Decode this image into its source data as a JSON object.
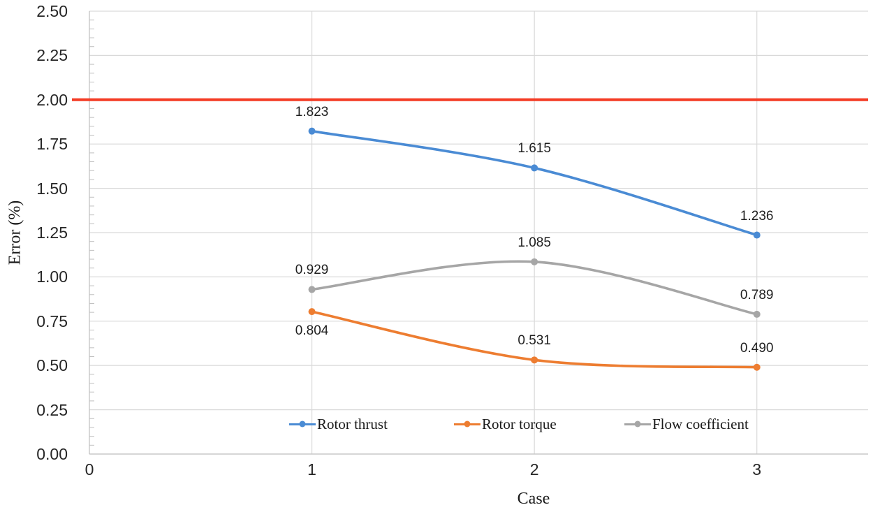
{
  "chart_data": {
    "type": "line",
    "title": "",
    "xlabel": "Case",
    "ylabel": "Error (%)",
    "x": [
      1,
      2,
      3
    ],
    "x_tick_values": [
      0,
      1,
      2,
      3
    ],
    "x_tick_labels": [
      "0",
      "1",
      "2",
      "3"
    ],
    "xlim": [
      0,
      3.5
    ],
    "ylim": [
      0,
      2.5
    ],
    "y_tick_step": 0.25,
    "y_minor_tick_step": 0.05,
    "y_tick_labels": [
      "0.00",
      "0.25",
      "0.50",
      "0.75",
      "1.00",
      "1.25",
      "1.50",
      "1.75",
      "2.00",
      "2.25",
      "2.50"
    ],
    "grid": true,
    "legend_position": "inside-bottom",
    "series": [
      {
        "name": "Rotor thrust",
        "color": "#4a8bd4",
        "values": [
          1.823,
          1.615,
          1.236
        ],
        "point_labels": [
          "1.823",
          "1.615",
          "1.236"
        ],
        "label_positions": [
          "above",
          "above",
          "above"
        ],
        "smooth": true
      },
      {
        "name": "Rotor torque",
        "color": "#ed7d31",
        "values": [
          0.804,
          0.531,
          0.49
        ],
        "point_labels": [
          "0.804",
          "0.531",
          "0.490"
        ],
        "label_positions": [
          "below",
          "above",
          "above"
        ],
        "smooth": true
      },
      {
        "name": "Flow coefficient",
        "color": "#a6a6a6",
        "values": [
          0.929,
          1.085,
          0.789
        ],
        "point_labels": [
          "0.929",
          "1.085",
          "0.789"
        ],
        "label_positions": [
          "above",
          "above",
          "above"
        ],
        "smooth": true
      }
    ],
    "reference_line": {
      "value": 2.0,
      "color": "#f43b24"
    }
  },
  "colors": {
    "gridline": "#d9d9d9",
    "axis_line": "#c3c3c3",
    "minor_tick": "#bfbfbf",
    "tick_text": "#262626",
    "data_label_text": "#1f1f1f",
    "background": "#ffffff"
  }
}
